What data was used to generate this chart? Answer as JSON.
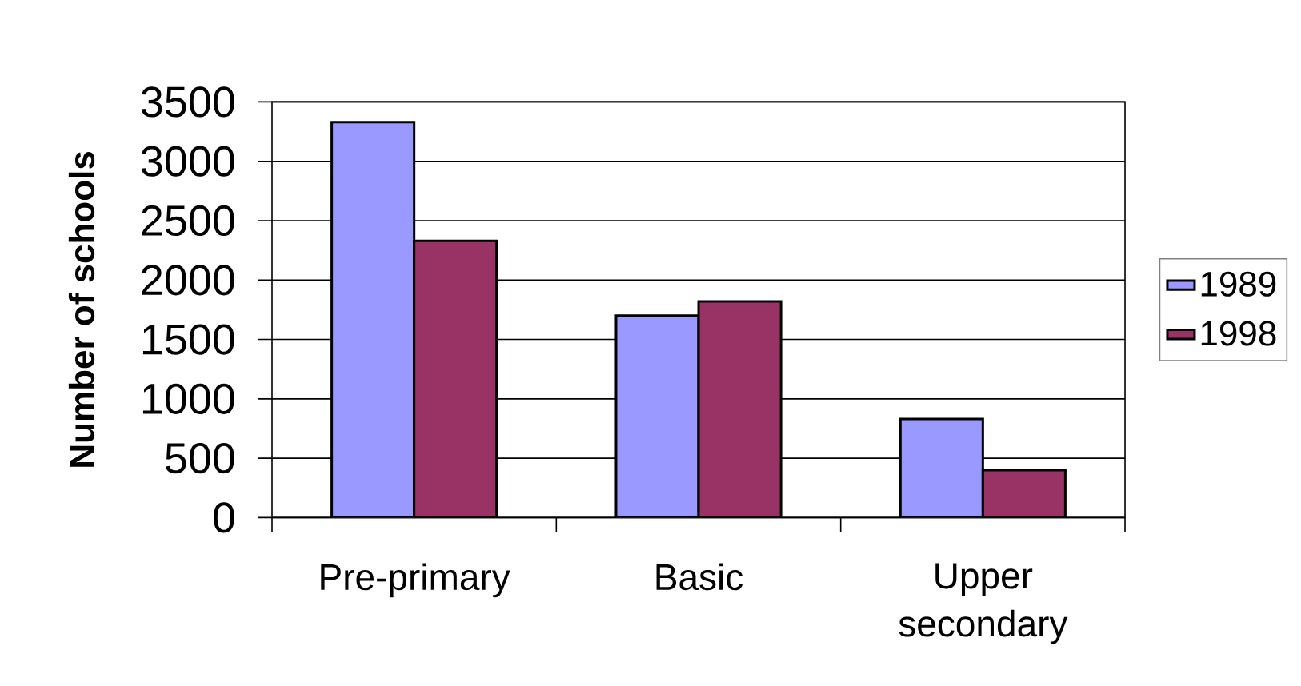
{
  "chart_data": {
    "type": "bar",
    "ylabel": "Number of schools",
    "categories": [
      "Pre-primary",
      "Basic",
      "Upper secondary"
    ],
    "series": [
      {
        "name": "1989",
        "color": "#9999ff",
        "values": [
          3330,
          1700,
          830
        ]
      },
      {
        "name": "1998",
        "color": "#993366",
        "values": [
          2330,
          1820,
          400
        ]
      }
    ],
    "ylim": [
      0,
      3500
    ],
    "yticks": [
      0,
      500,
      1000,
      1500,
      2000,
      2500,
      3000,
      3500
    ],
    "grid": "y",
    "legend": "right"
  }
}
